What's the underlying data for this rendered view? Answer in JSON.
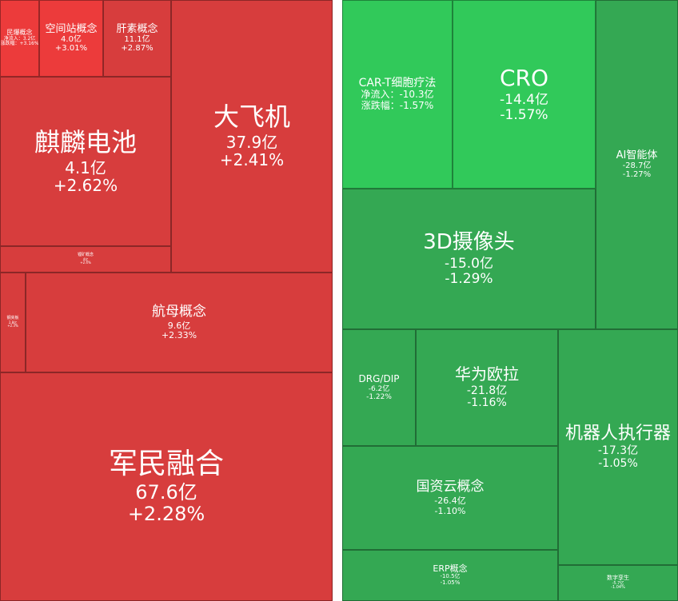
{
  "colors": {
    "background": "#ffffff",
    "gain_panel": "#d73d3d",
    "gain_bright": "#ec3b3b",
    "loss_panel": "#34a853",
    "loss_bright": "#31c95a"
  },
  "chart_data": {
    "type": "treemap",
    "units": {
      "net_flow": "亿",
      "change": "%"
    },
    "panels": [
      {
        "name": "gainers",
        "tiles": [
          {
            "id": "minbao",
            "name": "民爆概念",
            "line2": "净流入：3.2亿",
            "line3": "涨跌幅：+3.16%",
            "net_flow": 3.2,
            "change": 3.16
          },
          {
            "id": "space-station",
            "name": "空间站概念",
            "value": "4.0亿",
            "pct": "+3.01%",
            "net_flow": 4.0,
            "change": 3.01
          },
          {
            "id": "heparin",
            "name": "肝素概念",
            "value": "11.1亿",
            "pct": "+2.87%",
            "net_flow": 11.1,
            "change": 2.87
          },
          {
            "id": "kirin-battery",
            "name": "麒麟电池",
            "value": "4.1亿",
            "pct": "+2.62%",
            "net_flow": 4.1,
            "change": 2.62
          },
          {
            "id": "big-aircraft",
            "name": "大飞机",
            "value": "37.9亿",
            "pct": "+2.41%",
            "net_flow": 37.9,
            "change": 2.41
          },
          {
            "id": "tiny-1",
            "name": "锂矿概念",
            "value": "4亿",
            "pct": "+2.4%"
          },
          {
            "id": "tiny-2",
            "name": "钢夹板",
            "value": "2.8亿",
            "pct": "+2.3%"
          },
          {
            "id": "aircraft-carrier",
            "name": "航母概念",
            "value": "9.6亿",
            "pct": "+2.33%",
            "net_flow": 9.6,
            "change": 2.33
          },
          {
            "id": "military-civil",
            "name": "军民融合",
            "value": "67.6亿",
            "pct": "+2.28%",
            "net_flow": 67.6,
            "change": 2.28
          }
        ]
      },
      {
        "name": "losers",
        "tiles": [
          {
            "id": "car-t",
            "name": "CAR-T细胞疗法",
            "line2": "净流入：-10.3亿",
            "line3": "涨跌幅：-1.57%",
            "net_flow": -10.3,
            "change": -1.57
          },
          {
            "id": "cro",
            "name": "CRO",
            "value": "-14.4亿",
            "pct": "-1.57%",
            "net_flow": -14.4,
            "change": -1.57
          },
          {
            "id": "ai-agent",
            "name": "AI智能体",
            "value": "-28.7亿",
            "pct": "-1.27%",
            "net_flow": -28.7,
            "change": -1.27
          },
          {
            "id": "3d-camera",
            "name": "3D摄像头",
            "value": "-15.0亿",
            "pct": "-1.29%",
            "net_flow": -15.0,
            "change": -1.29
          },
          {
            "id": "drg-dip",
            "name": "DRG/DIP",
            "value": "-6.2亿",
            "pct": "-1.22%",
            "net_flow": -6.2,
            "change": -1.22
          },
          {
            "id": "huawei-euler",
            "name": "华为欧拉",
            "value": "-21.8亿",
            "pct": "-1.16%",
            "net_flow": -21.8,
            "change": -1.16
          },
          {
            "id": "robot-actuator",
            "name": "机器人执行器",
            "value": "-17.3亿",
            "pct": "-1.05%",
            "net_flow": -17.3,
            "change": -1.05
          },
          {
            "id": "state-cloud",
            "name": "国资云概念",
            "value": "-26.4亿",
            "pct": "-1.10%",
            "net_flow": -26.4,
            "change": -1.1
          },
          {
            "id": "erp",
            "name": "ERP概念",
            "value": "-10.5亿",
            "pct": "-1.05%",
            "net_flow": -10.5,
            "change": -1.05
          },
          {
            "id": "digital-twin",
            "name": "数字孪生",
            "value": "-5.7亿",
            "pct": "-1.04%",
            "net_flow": -5.7,
            "change": -1.04
          }
        ]
      }
    ]
  }
}
